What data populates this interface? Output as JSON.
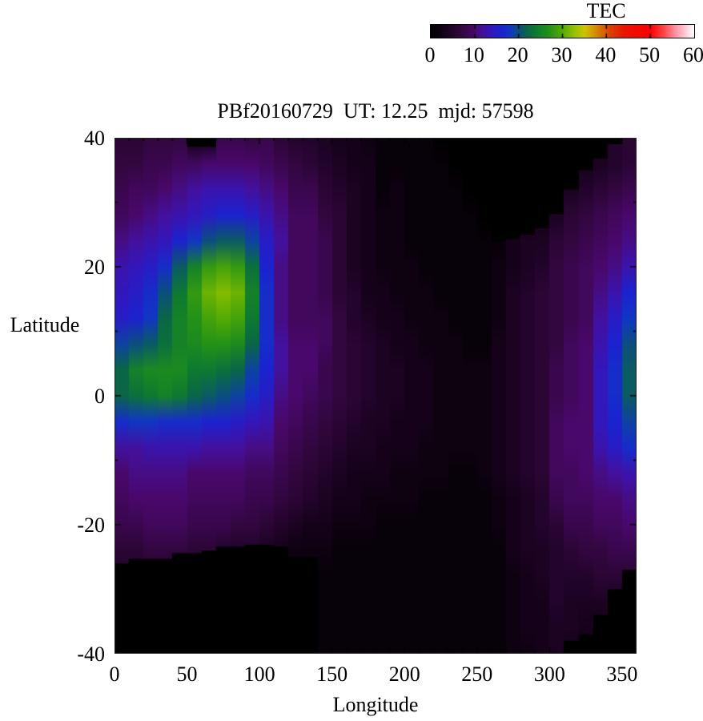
{
  "title": "PBf20160729  UT: 12.25  mjd: 57598",
  "colorbar": {
    "label": "TEC",
    "min": 0,
    "max": 60,
    "tick_values": [
      0,
      10,
      20,
      30,
      40,
      50,
      60
    ],
    "bar_tick_values": [
      10,
      20,
      30,
      40,
      50
    ]
  },
  "axes": {
    "xlabel": "Longitude",
    "ylabel": "Latitude",
    "x_tick_values": [
      0,
      50,
      100,
      150,
      200,
      250,
      300,
      350
    ],
    "y_tick_values": [
      40,
      20,
      0,
      -20,
      -40
    ],
    "x_minor_step": 10,
    "y_minor_step": 10,
    "x_range": [
      0,
      360
    ],
    "y_range": [
      -40,
      40
    ]
  },
  "chart_data": {
    "type": "heatmap",
    "title": "PBf20160729  UT: 12.25  mjd: 57598",
    "xlabel": "Longitude",
    "ylabel": "Latitude",
    "colorbar_label": "TEC",
    "value_range": [
      0,
      60
    ],
    "x_range": [
      0,
      360
    ],
    "y_range": [
      -40,
      40
    ],
    "grid_on": false,
    "lon_bin_width_deg": 10,
    "lat_samples": [
      40,
      36,
      32,
      28,
      24,
      20,
      16,
      12,
      8,
      4,
      0,
      -4,
      -8,
      -12,
      -16,
      -20,
      -24,
      -28,
      -32,
      -36,
      -40
    ],
    "palette_stops": [
      [
        0,
        "#000000"
      ],
      [
        4,
        "#1c0322"
      ],
      [
        7,
        "#32073f"
      ],
      [
        10,
        "#49086b"
      ],
      [
        12,
        "#43119e"
      ],
      [
        14,
        "#3317bb"
      ],
      [
        16,
        "#1b23cf"
      ],
      [
        18,
        "#1136c4"
      ],
      [
        20,
        "#0b4f7e"
      ],
      [
        22,
        "#0a6647"
      ],
      [
        24,
        "#0d7a31"
      ],
      [
        27,
        "#249217"
      ],
      [
        30,
        "#55ab04"
      ],
      [
        33,
        "#9cc400"
      ],
      [
        35,
        "#ccc400"
      ],
      [
        37,
        "#d49a00"
      ],
      [
        39,
        "#d66a00"
      ],
      [
        41,
        "#d93f00"
      ],
      [
        44,
        "#ea1500"
      ],
      [
        50,
        "#fc0000"
      ],
      [
        53,
        "#ff4444"
      ],
      [
        56,
        "#ff99aa"
      ],
      [
        58,
        "#ffccd6"
      ],
      [
        60,
        "#ffffff"
      ]
    ],
    "columns": [
      {
        "lon_min": 0,
        "lon_max": 10,
        "tec": [
          6,
          7,
          8,
          9,
          11,
          13,
          14,
          15,
          19,
          22,
          22,
          17,
          12,
          10,
          9,
          8,
          6,
          5,
          4,
          4,
          4
        ],
        "black_above_lat": null,
        "black_below_lat": -26
      },
      {
        "lon_min": 10,
        "lon_max": 20,
        "tec": [
          6,
          7,
          9,
          10,
          12,
          14,
          15,
          16,
          20,
          25,
          23,
          18,
          12,
          11,
          10,
          8,
          6,
          5,
          4,
          4,
          4
        ],
        "black_above_lat": null,
        "black_below_lat": -25.3
      },
      {
        "lon_min": 20,
        "lon_max": 30,
        "tec": [
          7,
          8,
          9,
          11,
          13,
          15,
          17,
          18,
          21,
          26,
          24,
          18,
          13,
          11,
          10,
          9,
          7,
          5,
          4,
          4,
          4
        ],
        "black_above_lat": null,
        "black_below_lat": -25.3
      },
      {
        "lon_min": 30,
        "lon_max": 40,
        "tec": [
          7,
          8,
          10,
          12,
          14,
          17,
          20,
          22,
          23,
          26,
          25,
          17,
          13,
          11,
          10,
          9,
          7,
          5,
          4,
          4,
          4
        ],
        "black_above_lat": null,
        "black_below_lat": -25.3
      },
      {
        "lon_min": 40,
        "lon_max": 50,
        "tec": [
          7,
          9,
          11,
          13,
          16,
          21,
          24,
          25,
          25,
          26,
          24,
          17,
          13,
          11,
          10,
          9,
          7,
          5,
          4,
          4,
          4
        ],
        "black_above_lat": null,
        "black_below_lat": -24.4
      },
      {
        "lon_min": 50,
        "lon_max": 60,
        "tec": [
          2,
          9,
          12,
          14,
          18,
          25,
          28,
          27,
          26,
          24,
          22,
          17,
          13,
          10,
          9,
          8,
          6,
          5,
          4,
          4,
          4
        ],
        "black_above_lat": 38.6,
        "black_below_lat": -24.4
      },
      {
        "lon_min": 60,
        "lon_max": 70,
        "tec": [
          2,
          10,
          13,
          15,
          20,
          28,
          31,
          29,
          27,
          24,
          21,
          16,
          12,
          10,
          9,
          8,
          6,
          5,
          4,
          4,
          4
        ],
        "black_above_lat": 38.6,
        "black_below_lat": -24
      },
      {
        "lon_min": 70,
        "lon_max": 80,
        "tec": [
          8,
          10,
          13,
          16,
          21,
          29,
          32,
          30,
          27,
          23,
          20,
          16,
          12,
          10,
          9,
          8,
          5,
          4,
          4,
          4,
          4
        ],
        "black_above_lat": null,
        "black_below_lat": -23.4
      },
      {
        "lon_min": 80,
        "lon_max": 90,
        "tec": [
          8,
          10,
          13,
          16,
          21,
          28,
          31,
          29,
          26,
          22,
          19,
          15,
          12,
          10,
          9,
          7,
          5,
          4,
          4,
          4,
          4
        ],
        "black_above_lat": null,
        "black_below_lat": -23.4
      },
      {
        "lon_min": 90,
        "lon_max": 100,
        "tec": [
          7,
          10,
          12,
          15,
          19,
          23,
          25,
          24,
          22,
          19,
          17,
          14,
          11,
          9,
          8,
          7,
          5,
          4,
          4,
          4,
          4
        ],
        "black_above_lat": null,
        "black_below_lat": -23.1
      },
      {
        "lon_min": 100,
        "lon_max": 110,
        "tec": [
          8,
          9,
          11,
          13,
          15,
          16,
          17,
          17,
          17,
          16,
          15,
          13,
          11,
          9,
          8,
          6,
          4,
          3,
          3,
          3,
          3
        ],
        "black_above_lat": null,
        "black_below_lat": -23.1
      },
      {
        "lon_min": 110,
        "lon_max": 120,
        "tec": [
          6,
          8,
          10,
          11,
          12,
          11,
          11,
          11,
          12,
          12,
          11,
          10,
          9,
          8,
          7,
          5,
          3,
          3,
          3,
          3,
          3
        ],
        "black_above_lat": null,
        "black_below_lat": -23.4
      },
      {
        "lon_min": 120,
        "lon_max": 130,
        "tec": [
          5,
          7,
          8,
          9,
          9,
          9,
          9,
          9,
          10,
          10,
          10,
          9,
          8,
          7,
          6,
          4,
          2,
          2,
          2,
          2,
          2
        ],
        "black_above_lat": null,
        "black_below_lat": -25
      },
      {
        "lon_min": 130,
        "lon_max": 140,
        "tec": [
          5,
          6,
          8,
          9,
          9,
          9,
          9,
          9,
          10,
          10,
          9,
          8,
          7,
          6,
          5,
          3,
          2,
          2,
          2,
          2,
          2
        ],
        "black_above_lat": null,
        "black_below_lat": -25
      },
      {
        "lon_min": 140,
        "lon_max": 150,
        "tec": [
          4,
          5,
          6,
          7,
          8,
          8,
          8,
          9,
          9,
          8,
          8,
          7,
          6,
          5,
          4,
          3,
          2,
          1,
          1,
          1,
          1
        ],
        "black_above_lat": null,
        "black_below_lat": null
      },
      {
        "lon_min": 150,
        "lon_max": 160,
        "tec": [
          3,
          4,
          5,
          6,
          6,
          6,
          6,
          7,
          7,
          7,
          7,
          6,
          5,
          4,
          3,
          2,
          1,
          1,
          1,
          1,
          1
        ],
        "black_above_lat": null,
        "black_below_lat": null
      },
      {
        "lon_min": 160,
        "lon_max": 170,
        "tec": [
          3,
          3,
          4,
          4,
          4,
          4,
          5,
          5,
          6,
          6,
          6,
          5,
          4,
          3,
          3,
          2,
          1,
          1,
          1,
          1,
          1
        ],
        "black_above_lat": null,
        "black_below_lat": null
      },
      {
        "lon_min": 170,
        "lon_max": 180,
        "tec": [
          2,
          3,
          3,
          3,
          3,
          3,
          3,
          4,
          5,
          5,
          5,
          4,
          4,
          3,
          2,
          2,
          1,
          1,
          1,
          1,
          1
        ],
        "black_above_lat": null,
        "black_below_lat": null
      },
      {
        "lon_min": 180,
        "lon_max": 190,
        "tec": [
          1,
          1,
          1,
          2,
          2,
          2,
          3,
          3,
          4,
          4,
          4,
          4,
          3,
          3,
          2,
          1,
          1,
          1,
          1,
          1,
          1
        ],
        "black_above_lat": null,
        "black_below_lat": null
      },
      {
        "lon_min": 190,
        "lon_max": 200,
        "tec": [
          1,
          1,
          2,
          2,
          2,
          2,
          2,
          3,
          3,
          4,
          4,
          3,
          3,
          2,
          2,
          1,
          1,
          1,
          1,
          1,
          1
        ],
        "black_above_lat": null,
        "black_below_lat": null
      },
      {
        "lon_min": 200,
        "lon_max": 210,
        "tec": [
          1,
          1,
          1,
          1,
          1,
          2,
          2,
          2,
          3,
          3,
          3,
          3,
          3,
          2,
          2,
          1,
          1,
          1,
          1,
          1,
          1
        ],
        "black_above_lat": null,
        "black_below_lat": null
      },
      {
        "lon_min": 210,
        "lon_max": 220,
        "tec": [
          1,
          1,
          1,
          1,
          1,
          1,
          2,
          2,
          2,
          3,
          3,
          3,
          2,
          2,
          1,
          1,
          1,
          1,
          1,
          1,
          1
        ],
        "black_above_lat": null,
        "black_below_lat": null
      },
      {
        "lon_min": 220,
        "lon_max": 230,
        "tec": [
          0,
          1,
          1,
          1,
          1,
          1,
          1,
          2,
          2,
          2,
          2,
          2,
          2,
          2,
          1,
          1,
          1,
          1,
          1,
          1,
          1
        ],
        "black_above_lat": null,
        "black_below_lat": null
      },
      {
        "lon_min": 230,
        "lon_max": 240,
        "tec": [
          0,
          0,
          1,
          1,
          1,
          1,
          1,
          1,
          2,
          2,
          2,
          2,
          2,
          1,
          1,
          1,
          1,
          1,
          1,
          1,
          1
        ],
        "black_above_lat": null,
        "black_below_lat": null
      },
      {
        "lon_min": 240,
        "lon_max": 250,
        "tec": [
          0,
          0,
          0,
          1,
          1,
          1,
          1,
          1,
          1,
          2,
          2,
          2,
          2,
          1,
          1,
          1,
          1,
          1,
          1,
          1,
          1
        ],
        "black_above_lat": null,
        "black_below_lat": null
      },
      {
        "lon_min": 250,
        "lon_max": 260,
        "tec": [
          0,
          0,
          0,
          0,
          1,
          1,
          1,
          1,
          1,
          2,
          2,
          2,
          2,
          2,
          1,
          1,
          1,
          1,
          1,
          1,
          1
        ],
        "black_above_lat": null,
        "black_below_lat": null
      },
      {
        "lon_min": 260,
        "lon_max": 270,
        "tec": [
          0,
          0,
          0,
          0,
          1,
          2,
          2,
          2,
          3,
          3,
          3,
          3,
          3,
          3,
          2,
          2,
          1,
          1,
          1,
          1,
          1
        ],
        "black_above_lat": 24,
        "black_below_lat": null
      },
      {
        "lon_min": 270,
        "lon_max": 280,
        "tec": [
          1,
          1,
          1,
          2,
          3,
          3,
          4,
          4,
          4,
          4,
          4,
          4,
          4,
          4,
          3,
          3,
          3,
          2,
          2,
          2,
          2
        ],
        "black_above_lat": 24.3,
        "black_below_lat": null
      },
      {
        "lon_min": 280,
        "lon_max": 290,
        "tec": [
          1,
          1,
          1,
          2,
          4,
          4,
          5,
          5,
          5,
          5,
          5,
          5,
          5,
          5,
          4,
          4,
          4,
          3,
          3,
          3,
          2
        ],
        "black_above_lat": 25,
        "black_below_lat": null
      },
      {
        "lon_min": 290,
        "lon_max": 300,
        "tec": [
          1,
          1,
          2,
          3,
          4,
          5,
          6,
          6,
          6,
          6,
          6,
          6,
          6,
          6,
          5,
          5,
          4,
          4,
          3,
          3,
          3
        ],
        "black_above_lat": 26,
        "black_below_lat": null
      },
      {
        "lon_min": 300,
        "lon_max": 310,
        "tec": [
          1,
          2,
          3,
          4,
          6,
          7,
          7,
          7,
          7,
          8,
          8,
          9,
          9,
          9,
          8,
          6,
          5,
          5,
          5,
          4,
          4
        ],
        "black_above_lat": 28.2,
        "black_below_lat": null
      },
      {
        "lon_min": 310,
        "lon_max": 320,
        "tec": [
          2,
          3,
          4,
          6,
          7,
          8,
          8,
          8,
          9,
          9,
          9,
          10,
          10,
          9,
          9,
          8,
          6,
          5,
          4,
          4,
          3
        ],
        "black_above_lat": 32,
        "black_below_lat": -38
      },
      {
        "lon_min": 320,
        "lon_max": 330,
        "tec": [
          2,
          3,
          5,
          7,
          8,
          9,
          9,
          9,
          10,
          10,
          10,
          10,
          10,
          10,
          9,
          8,
          7,
          5,
          4,
          3,
          3
        ],
        "black_above_lat": 35,
        "black_below_lat": -37
      },
      {
        "lon_min": 330,
        "lon_max": 340,
        "tec": [
          3,
          4,
          6,
          8,
          9,
          10,
          11,
          12,
          13,
          14,
          14,
          14,
          13,
          11,
          10,
          9,
          7,
          6,
          4,
          3,
          3
        ],
        "black_above_lat": 36.8,
        "black_below_lat": -34
      },
      {
        "lon_min": 340,
        "lon_max": 350,
        "tec": [
          5,
          5,
          7,
          9,
          10,
          11,
          13,
          15,
          16,
          17,
          17,
          16,
          15,
          12,
          10,
          9,
          8,
          6,
          4,
          3,
          3
        ],
        "black_above_lat": 39,
        "black_below_lat": -30
      },
      {
        "lon_min": 350,
        "lon_max": 360,
        "tec": [
          6,
          6,
          8,
          10,
          11,
          13,
          16,
          18,
          20,
          21,
          21,
          19,
          17,
          13,
          11,
          10,
          8,
          6,
          4,
          3,
          3
        ],
        "black_above_lat": null,
        "black_below_lat": -27
      }
    ]
  }
}
